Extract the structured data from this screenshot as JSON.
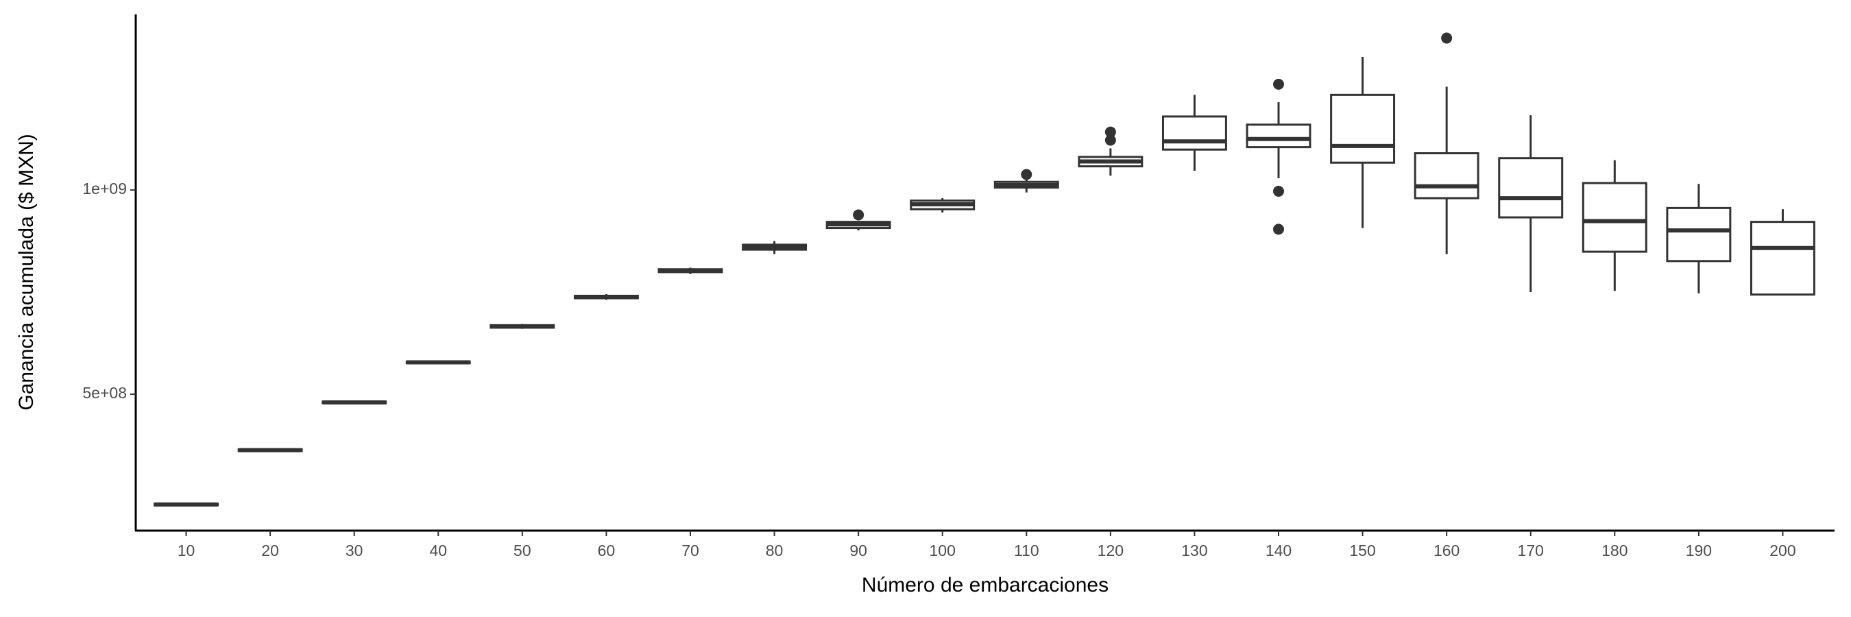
{
  "chart_data": {
    "type": "box",
    "x_label": "Número de embarcaciones",
    "y_label": "Ganancia acumulada ($ MXN)",
    "categories": [
      "10",
      "20",
      "30",
      "40",
      "50",
      "60",
      "70",
      "80",
      "90",
      "100",
      "110",
      "120",
      "130",
      "140",
      "150",
      "160",
      "170",
      "180",
      "190",
      "200"
    ],
    "boxes": [
      {
        "min": 227000000,
        "q1": 228000000,
        "median": 230000000,
        "q3": 232000000,
        "max": 233000000,
        "outliers": []
      },
      {
        "min": 360000000,
        "q1": 361000000,
        "median": 363000000,
        "q3": 365000000,
        "max": 366000000,
        "outliers": []
      },
      {
        "min": 476000000,
        "q1": 478000000,
        "median": 480000000,
        "q3": 482000000,
        "max": 485000000,
        "outliers": []
      },
      {
        "min": 574000000,
        "q1": 576000000,
        "median": 578000000,
        "q3": 580000000,
        "max": 582000000,
        "outliers": []
      },
      {
        "min": 660000000,
        "q1": 663000000,
        "median": 666000000,
        "q3": 669000000,
        "max": 672000000,
        "outliers": []
      },
      {
        "min": 731000000,
        "q1": 735000000,
        "median": 738000000,
        "q3": 741000000,
        "max": 745000000,
        "outliers": []
      },
      {
        "min": 794000000,
        "q1": 799000000,
        "median": 802000000,
        "q3": 806000000,
        "max": 810000000,
        "outliers": []
      },
      {
        "min": 843000000,
        "q1": 854000000,
        "median": 860000000,
        "q3": 866000000,
        "max": 875000000,
        "outliers": []
      },
      {
        "min": 901000000,
        "q1": 907000000,
        "median": 916000000,
        "q3": 922000000,
        "max": 924000000,
        "outliers": [
          939000000
        ]
      },
      {
        "min": 945000000,
        "q1": 953000000,
        "median": 965000000,
        "q3": 974000000,
        "max": 980000000,
        "outliers": []
      },
      {
        "min": 994000000,
        "q1": 1006000000,
        "median": 1012000000,
        "q3": 1020000000,
        "max": 1026000000,
        "outliers": [
          1038000000
        ]
      },
      {
        "min": 1035000000,
        "q1": 1058000000,
        "median": 1070000000,
        "q3": 1081000000,
        "max": 1102000000,
        "outliers": [
          1142000000,
          1122000000
        ]
      },
      {
        "min": 1047000000,
        "q1": 1099000000,
        "median": 1119000000,
        "q3": 1180000000,
        "max": 1233000000,
        "outliers": []
      },
      {
        "min": 1029000000,
        "q1": 1105000000,
        "median": 1125000000,
        "q3": 1160000000,
        "max": 1215000000,
        "outliers": [
          1259000000,
          997000000,
          904000000
        ]
      },
      {
        "min": 907000000,
        "q1": 1067000000,
        "median": 1108000000,
        "q3": 1233000000,
        "max": 1326000000,
        "outliers": []
      },
      {
        "min": 843000000,
        "q1": 980000000,
        "median": 1009000000,
        "q3": 1090000000,
        "max": 1253000000,
        "outliers": [
          1372000000
        ]
      },
      {
        "min": 750000000,
        "q1": 933000000,
        "median": 980000000,
        "q3": 1078000000,
        "max": 1183000000,
        "outliers": []
      },
      {
        "min": 753000000,
        "q1": 849000000,
        "median": 924000000,
        "q3": 1017000000,
        "max": 1073000000,
        "outliers": []
      },
      {
        "min": 747000000,
        "q1": 826000000,
        "median": 901000000,
        "q3": 956000000,
        "max": 1015000000,
        "outliers": []
      },
      {
        "min": 744000000,
        "q1": 744000000,
        "median": 858000000,
        "q3": 922000000,
        "max": 953000000,
        "outliers": []
      }
    ],
    "ylim": [
      166000000,
      1430000000
    ],
    "yticks": [
      {
        "value": 500000000,
        "label": "5e+08"
      },
      {
        "value": 1000000000,
        "label": "1e+09"
      }
    ],
    "color": "#333333"
  }
}
